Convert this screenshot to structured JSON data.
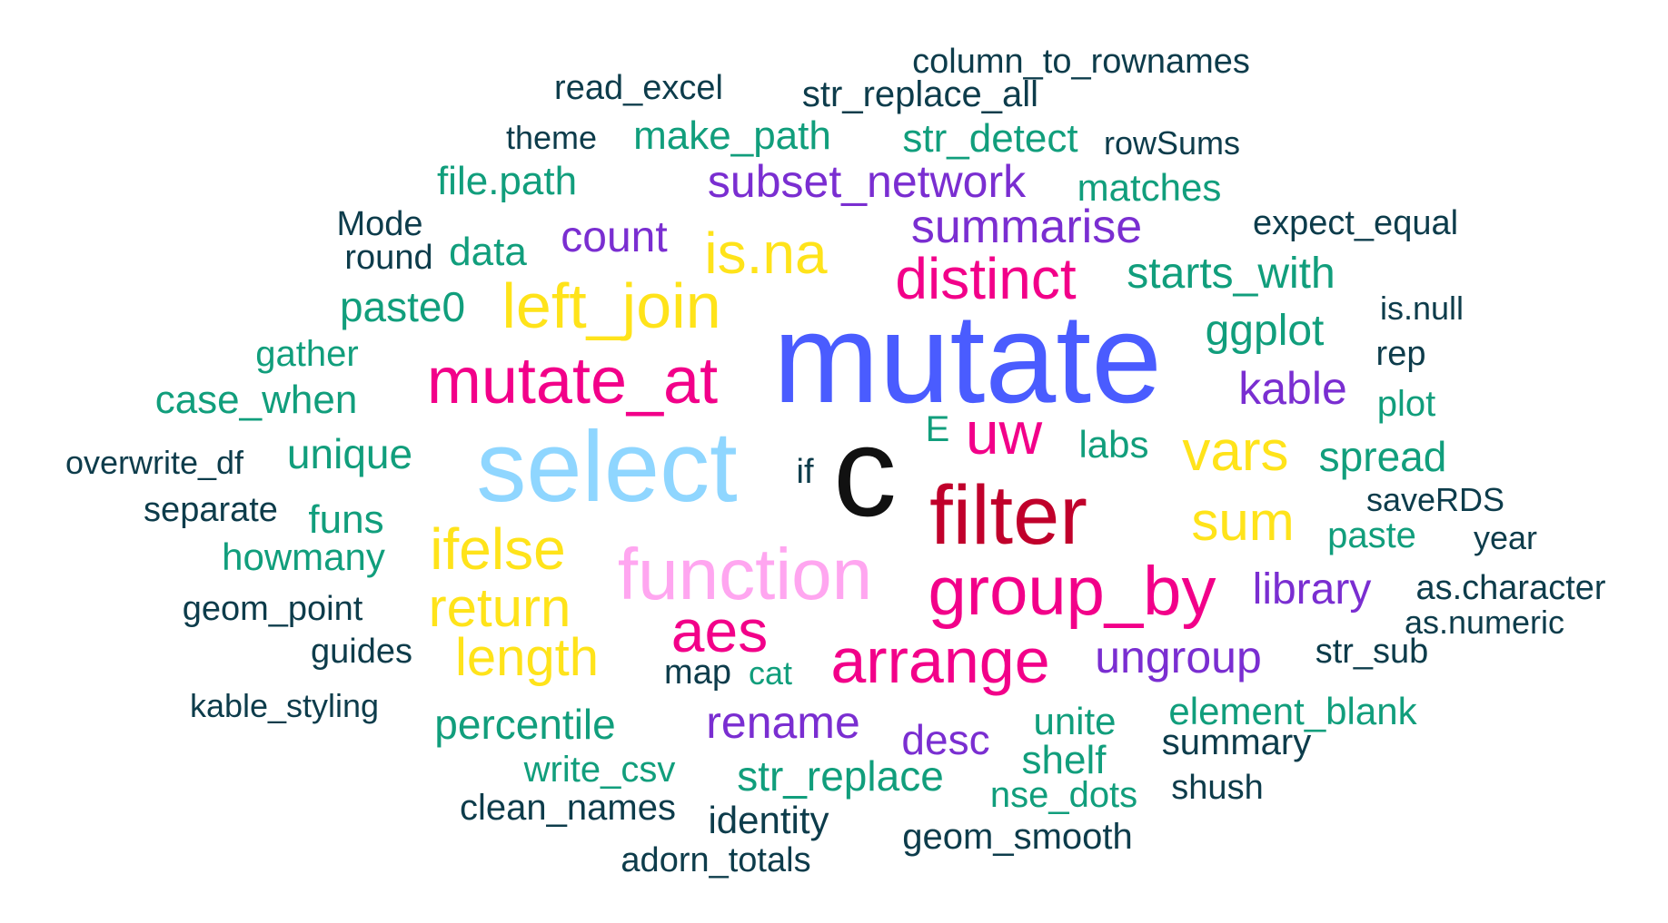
{
  "chart_data": {
    "type": "wordcloud",
    "title": "",
    "colors": {
      "dark": "#0d3c4b",
      "green": "#119e7c",
      "purple": "#7a2ed1",
      "yellow": "#ffe31a",
      "pink": "#f20089",
      "light_pink": "#ffa6f0",
      "light_blue": "#8fd6ff",
      "blue": "#4a5cff",
      "crimson": "#c0002b",
      "black": "#111111"
    },
    "words": [
      {
        "text": "mutate",
        "color": "blue"
      },
      {
        "text": "c",
        "color": "black"
      },
      {
        "text": "select",
        "color": "light_blue"
      },
      {
        "text": "filter",
        "color": "crimson"
      },
      {
        "text": "function",
        "color": "light_pink"
      },
      {
        "text": "group_by",
        "color": "pink"
      },
      {
        "text": "mutate_at",
        "color": "pink"
      },
      {
        "text": "arrange",
        "color": "pink"
      },
      {
        "text": "left_join",
        "color": "yellow"
      },
      {
        "text": "distinct",
        "color": "pink"
      },
      {
        "text": "uw",
        "color": "pink"
      },
      {
        "text": "aes",
        "color": "pink"
      },
      {
        "text": "is.na",
        "color": "yellow"
      },
      {
        "text": "ifelse",
        "color": "yellow"
      },
      {
        "text": "return",
        "color": "yellow"
      },
      {
        "text": "vars",
        "color": "yellow"
      },
      {
        "text": "sum",
        "color": "yellow"
      },
      {
        "text": "length",
        "color": "yellow"
      },
      {
        "text": "summarise",
        "color": "purple"
      },
      {
        "text": "subset_network",
        "color": "purple"
      },
      {
        "text": "rename",
        "color": "purple"
      },
      {
        "text": "ungroup",
        "color": "purple"
      },
      {
        "text": "library",
        "color": "purple"
      },
      {
        "text": "kable",
        "color": "purple"
      },
      {
        "text": "count",
        "color": "purple"
      },
      {
        "text": "desc",
        "color": "purple"
      },
      {
        "text": "ggplot",
        "color": "green"
      },
      {
        "text": "starts_with",
        "color": "green"
      },
      {
        "text": "paste0",
        "color": "green"
      },
      {
        "text": "case_when",
        "color": "green"
      },
      {
        "text": "unique",
        "color": "green"
      },
      {
        "text": "percentile",
        "color": "green"
      },
      {
        "text": "str_replace",
        "color": "green"
      },
      {
        "text": "spread",
        "color": "green"
      },
      {
        "text": "make_path",
        "color": "green"
      },
      {
        "text": "str_detect",
        "color": "green"
      },
      {
        "text": "file.path",
        "color": "green"
      },
      {
        "text": "matches",
        "color": "green"
      },
      {
        "text": "howmany",
        "color": "green"
      },
      {
        "text": "funs",
        "color": "green"
      },
      {
        "text": "data",
        "color": "green"
      },
      {
        "text": "gather",
        "color": "green"
      },
      {
        "text": "element_blank",
        "color": "green"
      },
      {
        "text": "unite",
        "color": "green"
      },
      {
        "text": "shelf",
        "color": "green"
      },
      {
        "text": "write_csv",
        "color": "green"
      },
      {
        "text": "nse_dots",
        "color": "green"
      },
      {
        "text": "paste",
        "color": "green"
      },
      {
        "text": "plot",
        "color": "green"
      },
      {
        "text": "labs",
        "color": "green"
      },
      {
        "text": "E",
        "color": "green"
      },
      {
        "text": "cat",
        "color": "green"
      },
      {
        "text": "column_to_rownames",
        "color": "dark"
      },
      {
        "text": "read_excel",
        "color": "dark"
      },
      {
        "text": "str_replace_all",
        "color": "dark"
      },
      {
        "text": "theme",
        "color": "dark"
      },
      {
        "text": "rowSums",
        "color": "dark"
      },
      {
        "text": "expect_equal",
        "color": "dark"
      },
      {
        "text": "Mode",
        "color": "dark"
      },
      {
        "text": "round",
        "color": "dark"
      },
      {
        "text": "is.null",
        "color": "dark"
      },
      {
        "text": "rep",
        "color": "dark"
      },
      {
        "text": "overwrite_df",
        "color": "dark"
      },
      {
        "text": "if",
        "color": "dark"
      },
      {
        "text": "separate",
        "color": "dark"
      },
      {
        "text": "saveRDS",
        "color": "dark"
      },
      {
        "text": "year",
        "color": "dark"
      },
      {
        "text": "as.character",
        "color": "dark"
      },
      {
        "text": "as.numeric",
        "color": "dark"
      },
      {
        "text": "geom_point",
        "color": "dark"
      },
      {
        "text": "guides",
        "color": "dark"
      },
      {
        "text": "map",
        "color": "dark"
      },
      {
        "text": "str_sub",
        "color": "dark"
      },
      {
        "text": "kable_styling",
        "color": "dark"
      },
      {
        "text": "summary",
        "color": "dark"
      },
      {
        "text": "shush",
        "color": "dark"
      },
      {
        "text": "clean_names",
        "color": "dark"
      },
      {
        "text": "identity",
        "color": "dark"
      },
      {
        "text": "geom_smooth",
        "color": "dark"
      },
      {
        "text": "adorn_totals",
        "color": "dark"
      }
    ]
  }
}
